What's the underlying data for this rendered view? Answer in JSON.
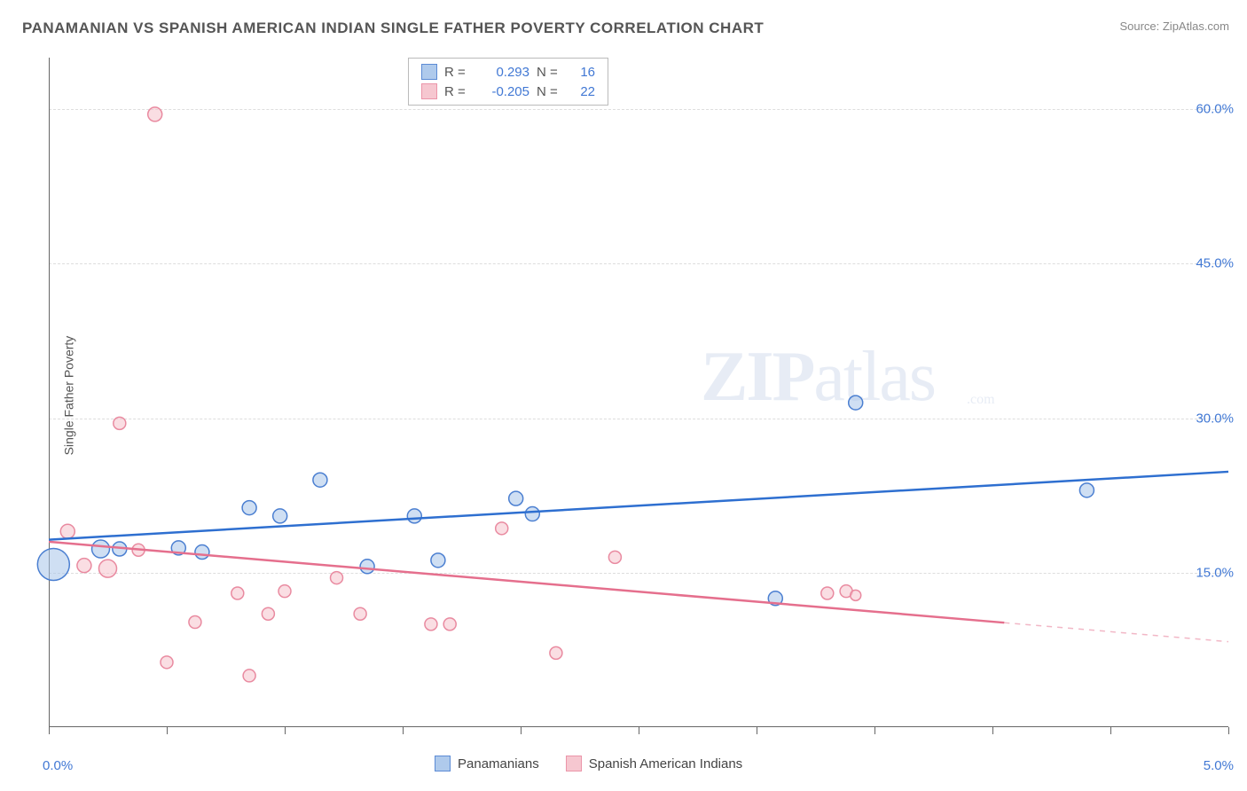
{
  "title": "PANAMANIAN VS SPANISH AMERICAN INDIAN SINGLE FATHER POVERTY CORRELATION CHART",
  "source_prefix": "Source: ",
  "source_link": "ZipAtlas.com",
  "ylabel": "Single Father Poverty",
  "watermark_zip": "ZIP",
  "watermark_atlas": "atlas",
  "watermark_com": ".com",
  "chart": {
    "type": "scatter",
    "background_color": "#ffffff",
    "grid_color": "#dddddd",
    "axis_color": "#666666",
    "tick_label_color": "#4178d4",
    "text_color": "#555555",
    "xlim": [
      0,
      5
    ],
    "ylim": [
      0,
      65
    ],
    "y_ticks": [
      15,
      30,
      45,
      60
    ],
    "y_tick_labels": [
      "15.0%",
      "30.0%",
      "45.0%",
      "60.0%"
    ],
    "x_ticks_minor": [
      0,
      0.5,
      1.0,
      1.5,
      2.0,
      2.5,
      3.0,
      3.5,
      4.0,
      4.5,
      5.0
    ],
    "x_tick_edge_labels": [
      "0.0%",
      "5.0%"
    ],
    "label_fontsize": 14,
    "tick_fontsize": 15,
    "title_fontsize": 17
  },
  "series": {
    "blue": {
      "name": "Panamanians",
      "fill": "#a7c5ea",
      "stroke": "#4b7fd1",
      "fill_opacity": 0.55,
      "line_color": "#2e6fd0",
      "line_width": 2.5,
      "R": "0.293",
      "N": "16",
      "trend": {
        "x1": 0,
        "y1": 18.2,
        "x2": 5.0,
        "y2": 24.8,
        "solid_to_x": 5.0
      },
      "points": [
        {
          "x": 0.02,
          "y": 15.8,
          "r": 18
        },
        {
          "x": 0.22,
          "y": 17.3,
          "r": 10
        },
        {
          "x": 0.3,
          "y": 17.3,
          "r": 8
        },
        {
          "x": 0.55,
          "y": 17.4,
          "r": 8
        },
        {
          "x": 0.65,
          "y": 17.0,
          "r": 8
        },
        {
          "x": 0.85,
          "y": 21.3,
          "r": 8
        },
        {
          "x": 0.98,
          "y": 20.5,
          "r": 8
        },
        {
          "x": 1.15,
          "y": 24.0,
          "r": 8
        },
        {
          "x": 1.35,
          "y": 15.6,
          "r": 8
        },
        {
          "x": 1.55,
          "y": 20.5,
          "r": 8
        },
        {
          "x": 1.65,
          "y": 16.2,
          "r": 8
        },
        {
          "x": 1.98,
          "y": 22.2,
          "r": 8
        },
        {
          "x": 2.05,
          "y": 20.7,
          "r": 8
        },
        {
          "x": 3.08,
          "y": 12.5,
          "r": 8
        },
        {
          "x": 3.42,
          "y": 31.5,
          "r": 8
        },
        {
          "x": 4.4,
          "y": 23.0,
          "r": 8
        }
      ]
    },
    "pink": {
      "name": "Spanish American Indians",
      "fill": "#f6c2cc",
      "stroke": "#e98aa0",
      "fill_opacity": 0.55,
      "line_color": "#e56f8d",
      "line_width": 2.5,
      "R": "-0.205",
      "N": "22",
      "trend": {
        "x1": 0,
        "y1": 18.0,
        "x2": 5.0,
        "y2": 8.3,
        "solid_to_x": 4.05
      },
      "points": [
        {
          "x": 0.08,
          "y": 19.0,
          "r": 8
        },
        {
          "x": 0.15,
          "y": 15.7,
          "r": 8
        },
        {
          "x": 0.25,
          "y": 15.4,
          "r": 10
        },
        {
          "x": 0.3,
          "y": 29.5,
          "r": 7
        },
        {
          "x": 0.38,
          "y": 17.2,
          "r": 7
        },
        {
          "x": 0.45,
          "y": 59.5,
          "r": 8
        },
        {
          "x": 0.5,
          "y": 6.3,
          "r": 7
        },
        {
          "x": 0.62,
          "y": 10.2,
          "r": 7
        },
        {
          "x": 0.8,
          "y": 13.0,
          "r": 7
        },
        {
          "x": 0.85,
          "y": 5.0,
          "r": 7
        },
        {
          "x": 0.93,
          "y": 11.0,
          "r": 7
        },
        {
          "x": 1.0,
          "y": 13.2,
          "r": 7
        },
        {
          "x": 1.22,
          "y": 14.5,
          "r": 7
        },
        {
          "x": 1.32,
          "y": 11.0,
          "r": 7
        },
        {
          "x": 1.62,
          "y": 10.0,
          "r": 7
        },
        {
          "x": 1.7,
          "y": 10.0,
          "r": 7
        },
        {
          "x": 1.92,
          "y": 19.3,
          "r": 7
        },
        {
          "x": 2.15,
          "y": 7.2,
          "r": 7
        },
        {
          "x": 2.4,
          "y": 16.5,
          "r": 7
        },
        {
          "x": 3.3,
          "y": 13.0,
          "r": 7
        },
        {
          "x": 3.38,
          "y": 13.2,
          "r": 7
        },
        {
          "x": 3.42,
          "y": 12.8,
          "r": 6
        }
      ]
    }
  },
  "corr_legend": {
    "R_label": "R  =",
    "N_label": "N  ="
  },
  "bottom_legend_order": [
    "blue",
    "pink"
  ]
}
